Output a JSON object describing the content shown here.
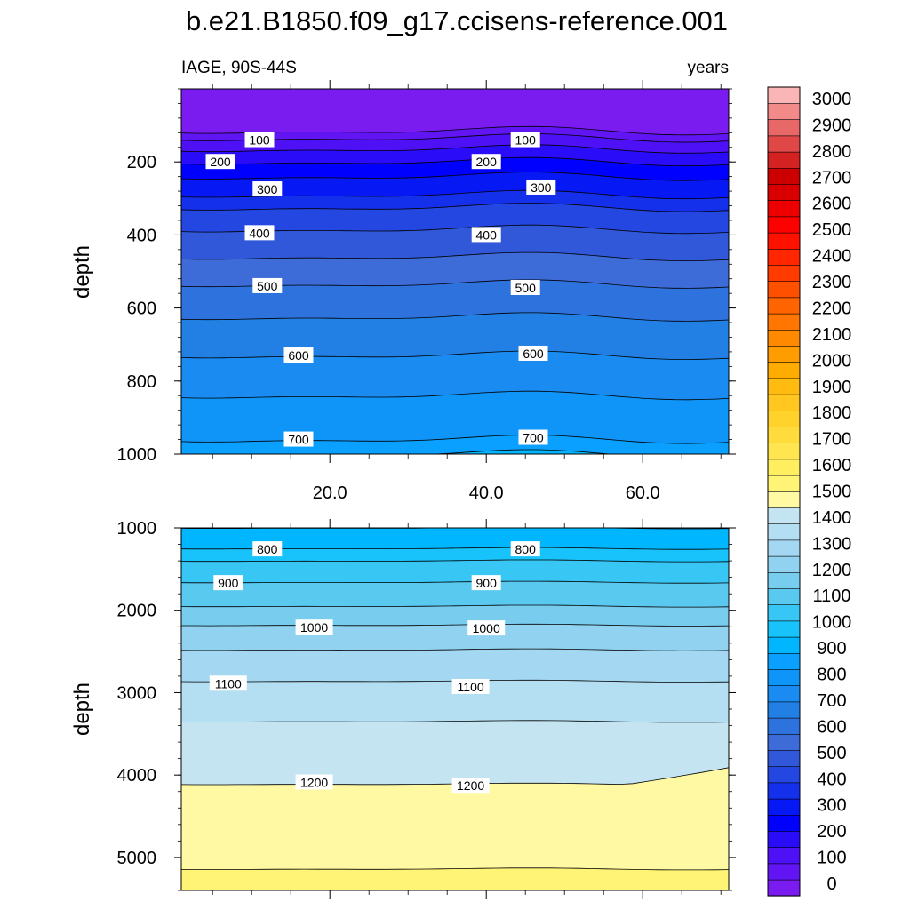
{
  "chart_data": {
    "type": "contour",
    "title": "b.e21.B1850.f09_g17.ccisens-reference.001",
    "variable_label": "IAGE, 90S-44S",
    "units_label": "years",
    "xlabel": "",
    "ylabel": "depth",
    "x_range": [
      1,
      71
    ],
    "x_ticks": [
      20,
      40,
      60
    ],
    "x_tick_labels": [
      "20.0",
      "40.0",
      "60.0"
    ],
    "panels": [
      {
        "name": "upper",
        "depth_range": [
          0,
          1000
        ],
        "y_ticks": [
          200,
          400,
          600,
          800,
          1000
        ],
        "y_tick_labels": [
          "200",
          "400",
          "600",
          "800",
          "1000"
        ],
        "contour_levels": [
          50,
          100,
          150,
          200,
          250,
          300,
          350,
          400,
          450,
          500,
          550,
          600,
          650,
          700,
          750
        ],
        "contour_labels": [
          {
            "text": "100",
            "x": 11,
            "depth": 140
          },
          {
            "text": "100",
            "x": 45,
            "depth": 140
          },
          {
            "text": "200",
            "x": 6,
            "depth": 200
          },
          {
            "text": "200",
            "x": 40,
            "depth": 200
          },
          {
            "text": "300",
            "x": 12,
            "depth": 275
          },
          {
            "text": "300",
            "x": 47,
            "depth": 270
          },
          {
            "text": "400",
            "x": 11,
            "depth": 395
          },
          {
            "text": "400",
            "x": 40,
            "depth": 400
          },
          {
            "text": "500",
            "x": 12,
            "depth": 540
          },
          {
            "text": "500",
            "x": 45,
            "depth": 545
          },
          {
            "text": "600",
            "x": 16,
            "depth": 730
          },
          {
            "text": "600",
            "x": 46,
            "depth": 725
          },
          {
            "text": "700",
            "x": 16,
            "depth": 960
          },
          {
            "text": "700",
            "x": 46,
            "depth": 955
          }
        ]
      },
      {
        "name": "lower",
        "depth_range": [
          1000,
          5400
        ],
        "y_ticks": [
          1000,
          2000,
          3000,
          4000,
          5000
        ],
        "y_tick_labels": [
          "1000",
          "2000",
          "3000",
          "4000",
          "5000"
        ],
        "contour_levels": [
          750,
          800,
          850,
          900,
          950,
          1000,
          1050,
          1100,
          1150,
          1200,
          1250
        ],
        "contour_labels": [
          {
            "text": "800",
            "x": 12,
            "depth": 1260
          },
          {
            "text": "800",
            "x": 45,
            "depth": 1260
          },
          {
            "text": "900",
            "x": 7,
            "depth": 1670
          },
          {
            "text": "900",
            "x": 40,
            "depth": 1670
          },
          {
            "text": "1000",
            "x": 18,
            "depth": 2210
          },
          {
            "text": "1000",
            "x": 40,
            "depth": 2220
          },
          {
            "text": "1100",
            "x": 7,
            "depth": 2890
          },
          {
            "text": "1100",
            "x": 38,
            "depth": 2930
          },
          {
            "text": "1200",
            "x": 18,
            "depth": 4090
          },
          {
            "text": "1200",
            "x": 38,
            "depth": 4130
          }
        ]
      }
    ],
    "colorbar": {
      "levels": [
        0,
        100,
        200,
        300,
        400,
        500,
        600,
        700,
        800,
        900,
        1000,
        1100,
        1200,
        1300,
        1400,
        1500,
        1600,
        1700,
        1800,
        1900,
        2000,
        2100,
        2200,
        2300,
        2400,
        2500,
        2600,
        2700,
        2800,
        2900,
        3000
      ],
      "labels": [
        "3000",
        "2900",
        "2800",
        "2700",
        "2600",
        "2500",
        "2400",
        "2300",
        "2200",
        "2100",
        "2000",
        "1900",
        "1800",
        "1700",
        "1600",
        "1500",
        "1400",
        "1300",
        "1200",
        "1100",
        "1000",
        "900",
        "800",
        "700",
        "600",
        "500",
        "400",
        "300",
        "200",
        "100",
        "0"
      ],
      "colors_bottom_to_top": [
        "#7a1bf0",
        "#6015f2",
        "#4e10f5",
        "#2a0cf8",
        "#0000ff",
        "#0618f3",
        "#1430ea",
        "#2447e2",
        "#3058d9",
        "#3d6bd8",
        "#2e72dd",
        "#2280e4",
        "#1a8bf0",
        "#0f95f8",
        "#0aa0ff",
        "#00b6ff",
        "#18c2fa",
        "#38c6f4",
        "#5ac9f0",
        "#78ccee",
        "#90d2f0",
        "#a4d8f2",
        "#b4def2",
        "#c4e4f2",
        "#fff9a4",
        "#fff476",
        "#ffef60",
        "#ffe650",
        "#ffdc3c",
        "#ffd22c",
        "#ffc720",
        "#ffbb10",
        "#ffac00",
        "#ff9c00",
        "#ff8a00",
        "#ff7700",
        "#ff6400",
        "#ff5000",
        "#ff3b00",
        "#ff2600",
        "#ff1100",
        "#ff0000",
        "#ee0000",
        "#d80000",
        "#cc0000",
        "#d42222",
        "#e04848",
        "#e86868",
        "#f28a8a",
        "#fab6b6"
      ]
    }
  }
}
